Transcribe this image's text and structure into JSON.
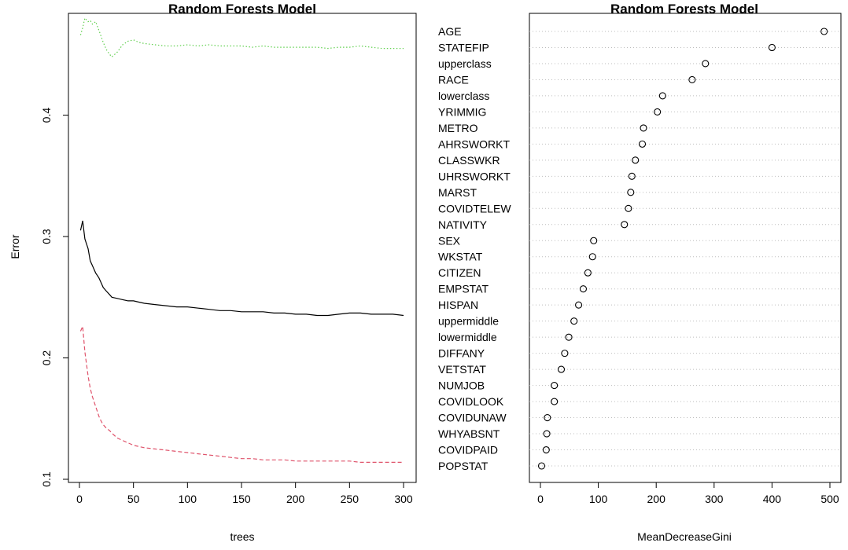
{
  "chart_data": [
    {
      "type": "line",
      "title": "Random Forests Model",
      "xlabel": "trees",
      "ylabel": "Error",
      "xlim": [
        0,
        300
      ],
      "ylim": [
        0.1,
        0.48
      ],
      "x_ticks": [
        0,
        50,
        100,
        150,
        200,
        250,
        300
      ],
      "y_ticks": [
        0.1,
        0.2,
        0.3,
        0.4
      ],
      "y_tick_labels": [
        "0.1",
        "0.2",
        "0.3",
        "0.4"
      ],
      "legend": "none",
      "grid": false,
      "series": [
        {
          "color": "#000000",
          "dash": "solid",
          "x": [
            1,
            3,
            5,
            8,
            10,
            12,
            15,
            18,
            20,
            22,
            25,
            28,
            30,
            35,
            40,
            45,
            50,
            55,
            60,
            70,
            80,
            90,
            100,
            110,
            120,
            130,
            140,
            150,
            160,
            170,
            180,
            190,
            200,
            210,
            220,
            230,
            240,
            250,
            260,
            270,
            280,
            290,
            300
          ],
          "values": [
            0.305,
            0.313,
            0.298,
            0.29,
            0.28,
            0.276,
            0.27,
            0.266,
            0.262,
            0.258,
            0.255,
            0.252,
            0.25,
            0.249,
            0.248,
            0.247,
            0.247,
            0.246,
            0.245,
            0.244,
            0.243,
            0.242,
            0.242,
            0.241,
            0.24,
            0.239,
            0.239,
            0.238,
            0.238,
            0.238,
            0.237,
            0.237,
            0.236,
            0.236,
            0.235,
            0.235,
            0.236,
            0.237,
            0.237,
            0.236,
            0.236,
            0.236,
            0.235
          ]
        },
        {
          "color": "#DF536B",
          "dash": "dashed",
          "x": [
            1,
            3,
            5,
            8,
            10,
            12,
            15,
            18,
            20,
            22,
            25,
            28,
            30,
            35,
            40,
            45,
            50,
            55,
            60,
            70,
            80,
            90,
            100,
            110,
            120,
            130,
            140,
            150,
            160,
            170,
            180,
            190,
            200,
            210,
            220,
            230,
            240,
            250,
            260,
            270,
            280,
            290,
            300
          ],
          "values": [
            0.222,
            0.226,
            0.205,
            0.185,
            0.175,
            0.168,
            0.16,
            0.152,
            0.148,
            0.145,
            0.142,
            0.14,
            0.138,
            0.134,
            0.132,
            0.13,
            0.128,
            0.127,
            0.126,
            0.125,
            0.124,
            0.123,
            0.122,
            0.121,
            0.12,
            0.119,
            0.118,
            0.117,
            0.117,
            0.116,
            0.116,
            0.116,
            0.115,
            0.115,
            0.115,
            0.115,
            0.115,
            0.115,
            0.114,
            0.114,
            0.114,
            0.114,
            0.114
          ]
        },
        {
          "color": "#61D04F",
          "dash": "dotted",
          "x": [
            1,
            3,
            5,
            8,
            10,
            12,
            15,
            18,
            20,
            22,
            25,
            28,
            30,
            35,
            40,
            45,
            50,
            55,
            60,
            70,
            80,
            90,
            100,
            110,
            120,
            130,
            140,
            150,
            160,
            170,
            180,
            190,
            200,
            210,
            220,
            230,
            240,
            250,
            260,
            270,
            280,
            290,
            300
          ],
          "values": [
            0.466,
            0.472,
            0.48,
            0.477,
            0.478,
            0.475,
            0.477,
            0.47,
            0.465,
            0.46,
            0.454,
            0.45,
            0.448,
            0.452,
            0.458,
            0.461,
            0.462,
            0.46,
            0.459,
            0.458,
            0.457,
            0.457,
            0.458,
            0.457,
            0.458,
            0.457,
            0.457,
            0.457,
            0.456,
            0.457,
            0.456,
            0.456,
            0.456,
            0.456,
            0.456,
            0.455,
            0.456,
            0.456,
            0.457,
            0.456,
            0.455,
            0.455,
            0.455
          ]
        }
      ]
    },
    {
      "type": "scatter",
      "title": "Random Forests Model",
      "xlabel": "MeanDecreaseGini",
      "ylabel": "",
      "xlim": [
        0,
        500
      ],
      "x_ticks": [
        0,
        100,
        200,
        300,
        400,
        500
      ],
      "legend": "none",
      "grid": true,
      "categories": [
        "AGE",
        "STATEFIP",
        "upperclass",
        "RACE",
        "lowerclass",
        "YRIMMIG",
        "METRO",
        "AHRSWORKT",
        "CLASSWKR",
        "UHRSWORKT",
        "MARST",
        "COVIDTELEW",
        "NATIVITY",
        "SEX",
        "WKSTAT",
        "CITIZEN",
        "EMPSTAT",
        "HISPAN",
        "uppermiddle",
        "lowermiddle",
        "DIFFANY",
        "VETSTAT",
        "NUMJOB",
        "COVIDLOOK",
        "COVIDUNAW",
        "WHYABSNT",
        "COVIDPAID",
        "POPSTAT"
      ],
      "values": [
        490,
        400,
        285,
        262,
        211,
        202,
        178,
        176,
        164,
        158,
        156,
        152,
        145,
        92,
        90,
        82,
        74,
        66,
        58,
        49,
        42,
        36,
        24,
        24,
        12,
        11,
        10,
        2
      ]
    }
  ]
}
